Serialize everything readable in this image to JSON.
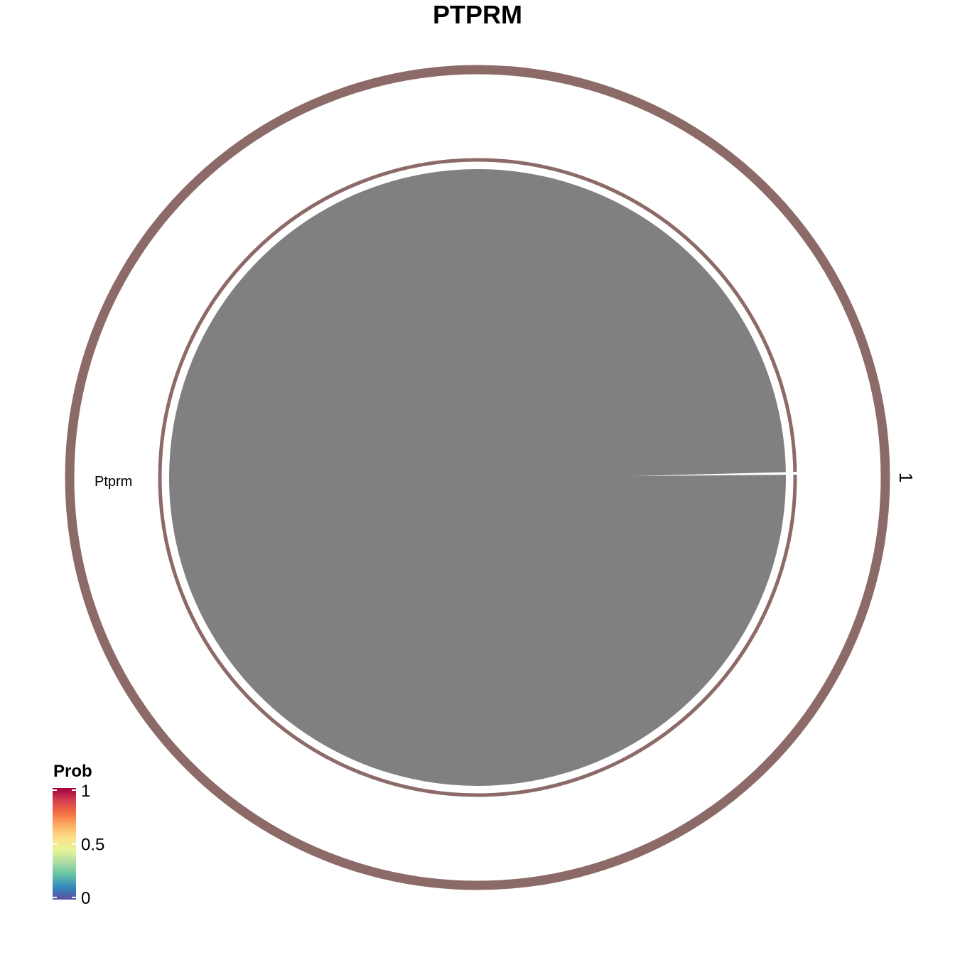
{
  "title": "PTPRM",
  "node": {
    "label": "Ptprm",
    "color": "#8C6A68"
  },
  "group": {
    "label": "1",
    "color": "#8C6A68"
  },
  "link": {
    "source": "Ptprm",
    "target": "Ptprm",
    "color": "#808080",
    "background": "#FFFFFF"
  },
  "legend": {
    "title": "Prob",
    "ticks": [
      {
        "value": 1,
        "label": "1"
      },
      {
        "value": 0.5,
        "label": "0.5"
      },
      {
        "value": 0,
        "label": "0"
      }
    ],
    "colors": [
      "#5E4FA2",
      "#3288BD",
      "#66C2A5",
      "#ABDDA4",
      "#E6F598",
      "#FEE08B",
      "#FDAE61",
      "#F46D43",
      "#D53E4F",
      "#9E0142"
    ]
  }
}
